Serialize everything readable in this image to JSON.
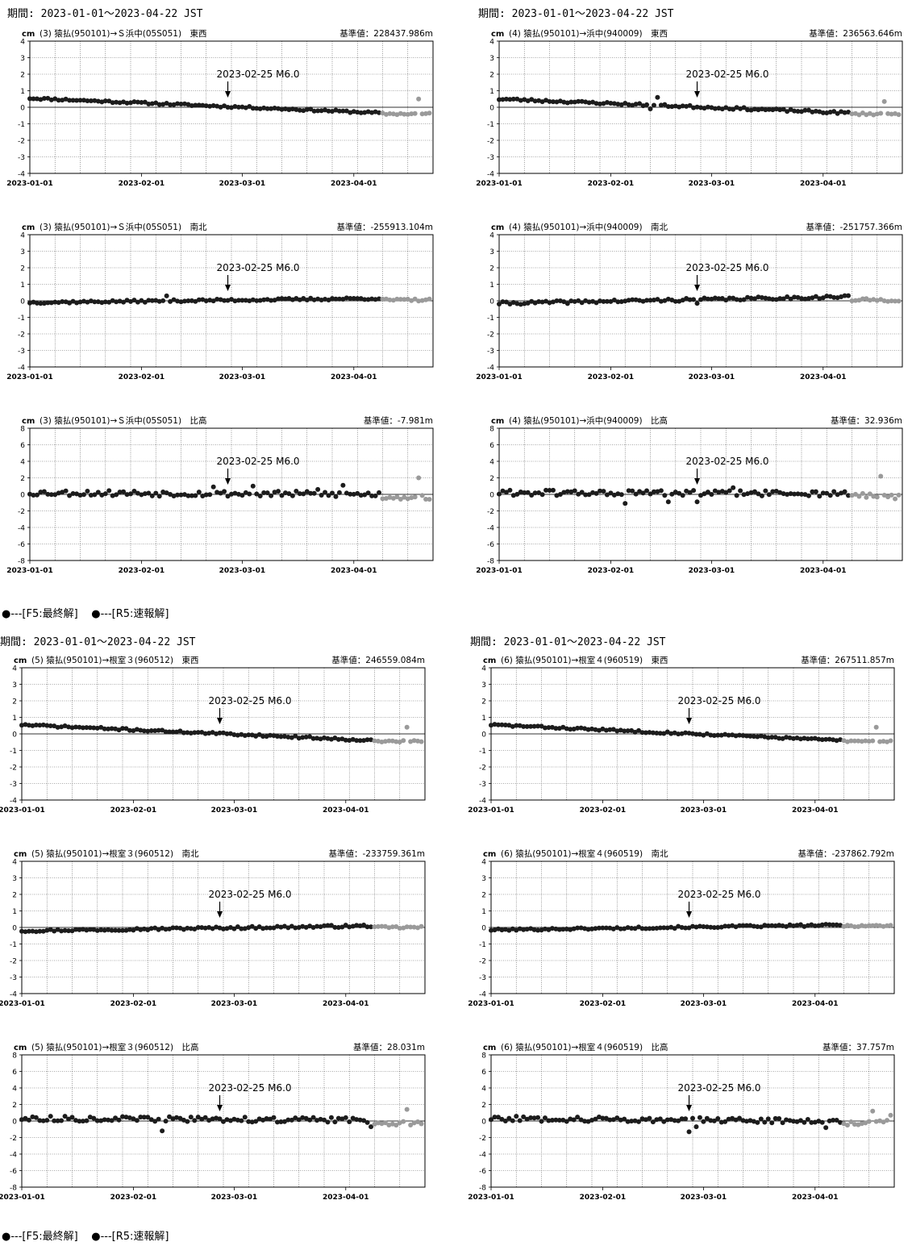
{
  "colors": {
    "final": "#1c1c1c",
    "rapid": "#9a9a9a",
    "grid": "#555555",
    "axis": "#000000"
  },
  "legend": {
    "final": "●---[F5:最終解]",
    "rapid": "●---[R5:速報解]"
  },
  "groups": [
    {
      "period": "期間: 2023-01-01～2023-04-22 JST"
    },
    {
      "period": "期間: 2023-01-01～2023-04-22 JST"
    },
    {
      "period": "期間: 2023-01-01～2023-04-22 JST"
    },
    {
      "period": "期間: 2023-01-01～2023-04-22 JST"
    }
  ],
  "chart_data": [
    {
      "type": "scatter",
      "unit": "cm",
      "title": "(3) 猿払(950101)→Ｓ浜中(05S051)　東西",
      "ref": "基準値：228437.986m",
      "ylim": [
        -4,
        4
      ],
      "yticks": [
        4,
        3,
        2,
        1,
        0,
        -1,
        -2,
        -3,
        -4
      ],
      "xticks": [
        "2023-01-01",
        "2023-02-01",
        "2023-03-01",
        "2023-04-01"
      ],
      "event": {
        "label": "2023-02-25 M6.0",
        "date": "2023-02-25"
      },
      "final": {
        "start": 0.55,
        "end": -0.35,
        "noise": 0.06,
        "seed": 11,
        "outliers": []
      },
      "rapid": {
        "level": -0.4,
        "outliers": [
          [
            108,
            0.5
          ]
        ]
      }
    },
    {
      "type": "scatter",
      "unit": "cm",
      "title": "(4) 猿払(950101)→浜中(940009)　東西",
      "ref": "基準値：236563.646m",
      "ylim": [
        -4,
        4
      ],
      "yticks": [
        4,
        3,
        2,
        1,
        0,
        -1,
        -2,
        -3,
        -4
      ],
      "xticks": [
        "2023-01-01",
        "2023-02-01",
        "2023-03-01",
        "2023-04-01"
      ],
      "event": {
        "label": "2023-02-25 M6.0",
        "date": "2023-02-25"
      },
      "final": {
        "start": 0.5,
        "end": -0.35,
        "noise": 0.07,
        "seed": 23,
        "outliers": [
          [
            42,
            -0.1
          ],
          [
            44,
            0.6
          ]
        ]
      },
      "rapid": {
        "level": -0.4,
        "outliers": [
          [
            107,
            0.35
          ]
        ]
      }
    },
    {
      "type": "scatter",
      "unit": "cm",
      "title": "(3) 猿払(950101)→Ｓ浜中(05S051)　南北",
      "ref": "基準値：-255913.104m",
      "ylim": [
        -4,
        4
      ],
      "yticks": [
        4,
        3,
        2,
        1,
        0,
        -1,
        -2,
        -3,
        -4
      ],
      "xticks": [
        "2023-01-01",
        "2023-02-01",
        "2023-03-01",
        "2023-04-01"
      ],
      "event": {
        "label": "2023-02-25 M6.0",
        "date": "2023-02-25"
      },
      "final": {
        "start": -0.1,
        "end": 0.15,
        "noise": 0.07,
        "seed": 37,
        "outliers": [
          [
            38,
            0.3
          ]
        ]
      },
      "rapid": {
        "level": 0.05,
        "outliers": []
      }
    },
    {
      "type": "scatter",
      "unit": "cm",
      "title": "(4) 猿払(950101)→浜中(940009)　南北",
      "ref": "基準値：-251757.366m",
      "ylim": [
        -4,
        4
      ],
      "yticks": [
        4,
        3,
        2,
        1,
        0,
        -1,
        -2,
        -3,
        -4
      ],
      "xticks": [
        "2023-01-01",
        "2023-02-01",
        "2023-03-01",
        "2023-04-01"
      ],
      "event": {
        "label": "2023-02-25 M6.0",
        "date": "2023-02-25"
      },
      "final": {
        "start": -0.15,
        "end": 0.25,
        "noise": 0.09,
        "seed": 41,
        "outliers": [
          [
            55,
            -0.15
          ],
          [
            99,
            0.3
          ]
        ]
      },
      "rapid": {
        "level": 0.05,
        "outliers": []
      }
    },
    {
      "type": "scatter",
      "unit": "cm",
      "title": "(3) 猿払(950101)→Ｓ浜中(05S051)　比高",
      "ref": "基準値：-7.981m",
      "ylim": [
        -8,
        8
      ],
      "yticks": [
        8,
        6,
        4,
        2,
        0,
        -2,
        -4,
        -6,
        -8
      ],
      "xticks": [
        "2023-01-01",
        "2023-02-01",
        "2023-03-01",
        "2023-04-01"
      ],
      "event": {
        "label": "2023-02-25 M6.0",
        "date": "2023-02-25"
      },
      "final": {
        "start": 0.2,
        "end": 0.0,
        "noise": 0.35,
        "seed": 53,
        "outliers": [
          [
            51,
            0.9
          ],
          [
            62,
            1.0
          ],
          [
            80,
            0.6
          ],
          [
            87,
            1.1
          ]
        ]
      },
      "rapid": {
        "level": -0.3,
        "outliers": [
          [
            108,
            2.0
          ]
        ]
      }
    },
    {
      "type": "scatter",
      "unit": "cm",
      "title": "(4) 猿払(950101)→浜中(940009)　比高",
      "ref": "基準値：32.936m",
      "ylim": [
        -8,
        8
      ],
      "yticks": [
        8,
        6,
        4,
        2,
        0,
        -2,
        -4,
        -6,
        -8
      ],
      "xticks": [
        "2023-01-01",
        "2023-02-01",
        "2023-03-01",
        "2023-04-01"
      ],
      "event": {
        "label": "2023-02-25 M6.0",
        "date": "2023-02-25"
      },
      "final": {
        "start": 0.2,
        "end": 0.1,
        "noise": 0.35,
        "seed": 61,
        "outliers": [
          [
            35,
            -1.1
          ],
          [
            47,
            -0.9
          ],
          [
            55,
            -0.9
          ],
          [
            65,
            0.8
          ]
        ]
      },
      "rapid": {
        "level": -0.2,
        "outliers": [
          [
            106,
            2.2
          ]
        ]
      }
    },
    {
      "type": "scatter",
      "unit": "cm",
      "title": "(5) 猿払(950101)→根室３(960512)　東西",
      "ref": "基準値：246559.084m",
      "ylim": [
        -4,
        4
      ],
      "yticks": [
        4,
        3,
        2,
        1,
        0,
        -1,
        -2,
        -3,
        -4
      ],
      "xticks": [
        "2023-01-01",
        "2023-02-01",
        "2023-03-01",
        "2023-04-01"
      ],
      "event": {
        "label": "2023-02-25 M6.0",
        "date": "2023-02-25"
      },
      "final": {
        "start": 0.55,
        "end": -0.4,
        "noise": 0.06,
        "seed": 71,
        "outliers": []
      },
      "rapid": {
        "level": -0.45,
        "outliers": [
          [
            107,
            0.4
          ]
        ]
      }
    },
    {
      "type": "scatter",
      "unit": "cm",
      "title": "(6) 猿払(950101)→根室４(960519)　東西",
      "ref": "基準値：267511.857m",
      "ylim": [
        -4,
        4
      ],
      "yticks": [
        4,
        3,
        2,
        1,
        0,
        -1,
        -2,
        -3,
        -4
      ],
      "xticks": [
        "2023-01-01",
        "2023-02-01",
        "2023-03-01",
        "2023-04-01"
      ],
      "event": {
        "label": "2023-02-25 M6.0",
        "date": "2023-02-25"
      },
      "final": {
        "start": 0.55,
        "end": -0.4,
        "noise": 0.06,
        "seed": 83,
        "outliers": []
      },
      "rapid": {
        "level": -0.45,
        "outliers": [
          [
            107,
            0.4
          ]
        ]
      }
    },
    {
      "type": "scatter",
      "unit": "cm",
      "title": "(5) 猿払(950101)→根室３(960512)　南北",
      "ref": "基準値：-233759.361m",
      "ylim": [
        -4,
        4
      ],
      "yticks": [
        4,
        3,
        2,
        1,
        0,
        -1,
        -2,
        -3,
        -4
      ],
      "xticks": [
        "2023-01-01",
        "2023-02-01",
        "2023-03-01",
        "2023-04-01"
      ],
      "event": {
        "label": "2023-02-25 M6.0",
        "date": "2023-02-25"
      },
      "final": {
        "start": -0.2,
        "end": 0.1,
        "noise": 0.07,
        "seed": 97,
        "outliers": []
      },
      "rapid": {
        "level": 0.0,
        "outliers": []
      }
    },
    {
      "type": "scatter",
      "unit": "cm",
      "title": "(6) 猿払(950101)→根室４(960519)　南北",
      "ref": "基準値：-237862.792m",
      "ylim": [
        -4,
        4
      ],
      "yticks": [
        4,
        3,
        2,
        1,
        0,
        -1,
        -2,
        -3,
        -4
      ],
      "xticks": [
        "2023-01-01",
        "2023-02-01",
        "2023-03-01",
        "2023-04-01"
      ],
      "event": {
        "label": "2023-02-25 M6.0",
        "date": "2023-02-25"
      },
      "final": {
        "start": -0.15,
        "end": 0.15,
        "noise": 0.06,
        "seed": 101,
        "outliers": []
      },
      "rapid": {
        "level": 0.1,
        "outliers": []
      }
    },
    {
      "type": "scatter",
      "unit": "cm",
      "title": "(5) 猿払(950101)→根室３(960512)　比高",
      "ref": "基準値：28.031m",
      "ylim": [
        -8,
        8
      ],
      "yticks": [
        8,
        6,
        4,
        2,
        0,
        -2,
        -4,
        -6,
        -8
      ],
      "xticks": [
        "2023-01-01",
        "2023-02-01",
        "2023-03-01",
        "2023-04-01"
      ],
      "event": {
        "label": "2023-02-25 M6.0",
        "date": "2023-02-25"
      },
      "final": {
        "start": 0.3,
        "end": 0.1,
        "noise": 0.3,
        "seed": 113,
        "outliers": [
          [
            39,
            -1.2
          ],
          [
            97,
            -0.7
          ]
        ]
      },
      "rapid": {
        "level": -0.2,
        "outliers": [
          [
            107,
            1.4
          ]
        ]
      }
    },
    {
      "type": "scatter",
      "unit": "cm",
      "title": "(6) 猿払(950101)→根室４(960519)　比高",
      "ref": "基準値：37.757m",
      "ylim": [
        -8,
        8
      ],
      "yticks": [
        8,
        6,
        4,
        2,
        0,
        -2,
        -4,
        -6,
        -8
      ],
      "xticks": [
        "2023-01-01",
        "2023-02-01",
        "2023-03-01",
        "2023-04-01"
      ],
      "event": {
        "label": "2023-02-25 M6.0",
        "date": "2023-02-25"
      },
      "final": {
        "start": 0.3,
        "end": 0.0,
        "noise": 0.3,
        "seed": 127,
        "outliers": [
          [
            55,
            -1.3
          ],
          [
            57,
            -0.7
          ],
          [
            93,
            -0.8
          ]
        ]
      },
      "rapid": {
        "level": -0.2,
        "outliers": [
          [
            106,
            1.2
          ],
          [
            111,
            0.7
          ]
        ]
      }
    }
  ]
}
